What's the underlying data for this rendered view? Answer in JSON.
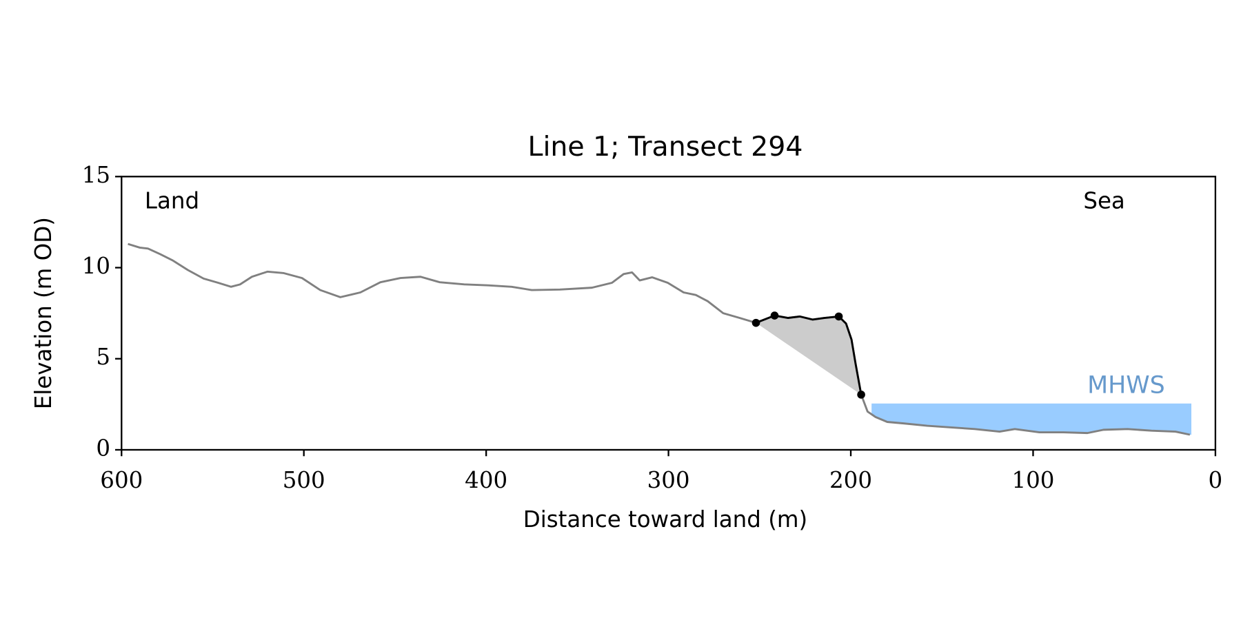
{
  "chart_data": {
    "type": "line",
    "title": "Line 1; Transect 294",
    "xlabel": "Distance toward land (m)",
    "ylabel": "Elevation (m OD)",
    "xlim": [
      600,
      0
    ],
    "ylim": [
      0,
      15
    ],
    "xticks": [
      600,
      500,
      400,
      300,
      200,
      100,
      0
    ],
    "yticks": [
      0,
      5,
      10,
      15
    ],
    "annotations": [
      "Land",
      "Sea"
    ],
    "mhws": {
      "label": "MHWS",
      "value": 2.54,
      "xrange": [
        188.6,
        13.2
      ],
      "color": "#99ccff",
      "label_color": "#6699cc"
    },
    "series": [
      {
        "mode": "line",
        "color": "#808080",
        "x": [
          596.5,
          590,
          585.5,
          579,
          572,
          563.6,
          555,
          547,
          540,
          535,
          528.5,
          520,
          511,
          501,
          491,
          480,
          469,
          458,
          447,
          436,
          425.5,
          412,
          399,
          386,
          375,
          359.6,
          342,
          331,
          324.6,
          320,
          315.8,
          309,
          300.4,
          291.7,
          285,
          278.5,
          270,
          261,
          252,
          241.8,
          234.4,
          228,
          221,
          214.5,
          206.6,
          202.6,
          199.6,
          197.4,
          194.3,
          190.8,
          186.4,
          180,
          171,
          158,
          145,
          132,
          118.4,
          110,
          96.5,
          83.4,
          70.2,
          61.4,
          48.2,
          35,
          21.9,
          14
        ],
        "values": [
          11.3,
          11.1,
          11.05,
          10.75,
          10.4,
          9.87,
          9.4,
          9.17,
          8.95,
          9.08,
          9.5,
          9.78,
          9.7,
          9.43,
          8.77,
          8.38,
          8.64,
          9.2,
          9.43,
          9.5,
          9.2,
          9.08,
          9.03,
          8.95,
          8.77,
          8.8,
          8.9,
          9.17,
          9.65,
          9.74,
          9.3,
          9.47,
          9.17,
          8.64,
          8.5,
          8.16,
          7.5,
          7.24,
          6.97,
          7.37,
          7.24,
          7.32,
          7.15,
          7.24,
          7.32,
          6.93,
          6.05,
          4.74,
          3.03,
          2.1,
          1.8,
          1.53,
          1.45,
          1.32,
          1.23,
          1.14,
          1.0,
          1.14,
          0.96,
          0.96,
          0.92,
          1.1,
          1.14,
          1.05,
          1.0,
          0.83
        ]
      },
      {
        "mode": "line",
        "color": "#000000",
        "fill": "#cccccc",
        "x": [
          252,
          241.8,
          234.4,
          228,
          221,
          214.5,
          206.6,
          202.6,
          199.6,
          197.4,
          194.3
        ],
        "values": [
          6.97,
          7.37,
          7.24,
          7.32,
          7.15,
          7.24,
          7.32,
          6.93,
          6.05,
          4.74,
          3.03
        ]
      },
      {
        "mode": "points",
        "color": "#000000",
        "x": [
          252,
          241.8,
          206.6,
          194.3
        ],
        "values": [
          6.97,
          7.37,
          7.32,
          3.03
        ]
      }
    ]
  }
}
